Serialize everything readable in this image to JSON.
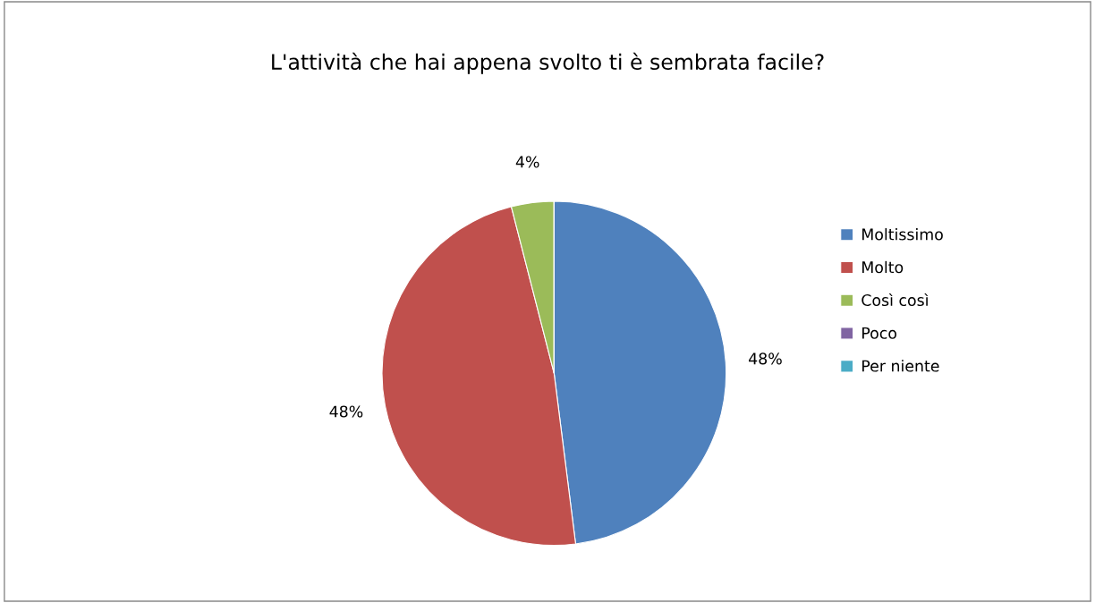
{
  "chart_data": {
    "type": "pie",
    "title": "L'attività che hai appena svolto ti è sembrata facile?",
    "categories": [
      "Moltissimo",
      "Molto",
      "Così così",
      "Poco",
      "Per niente"
    ],
    "values": [
      48,
      48,
      4,
      0,
      0
    ],
    "colors": [
      "#4f81bd",
      "#c0504d",
      "#9bbb59",
      "#8064a2",
      "#4bacc6"
    ],
    "value_labels": [
      "48%",
      "48%",
      "4%",
      null,
      null
    ],
    "legend": "right"
  }
}
